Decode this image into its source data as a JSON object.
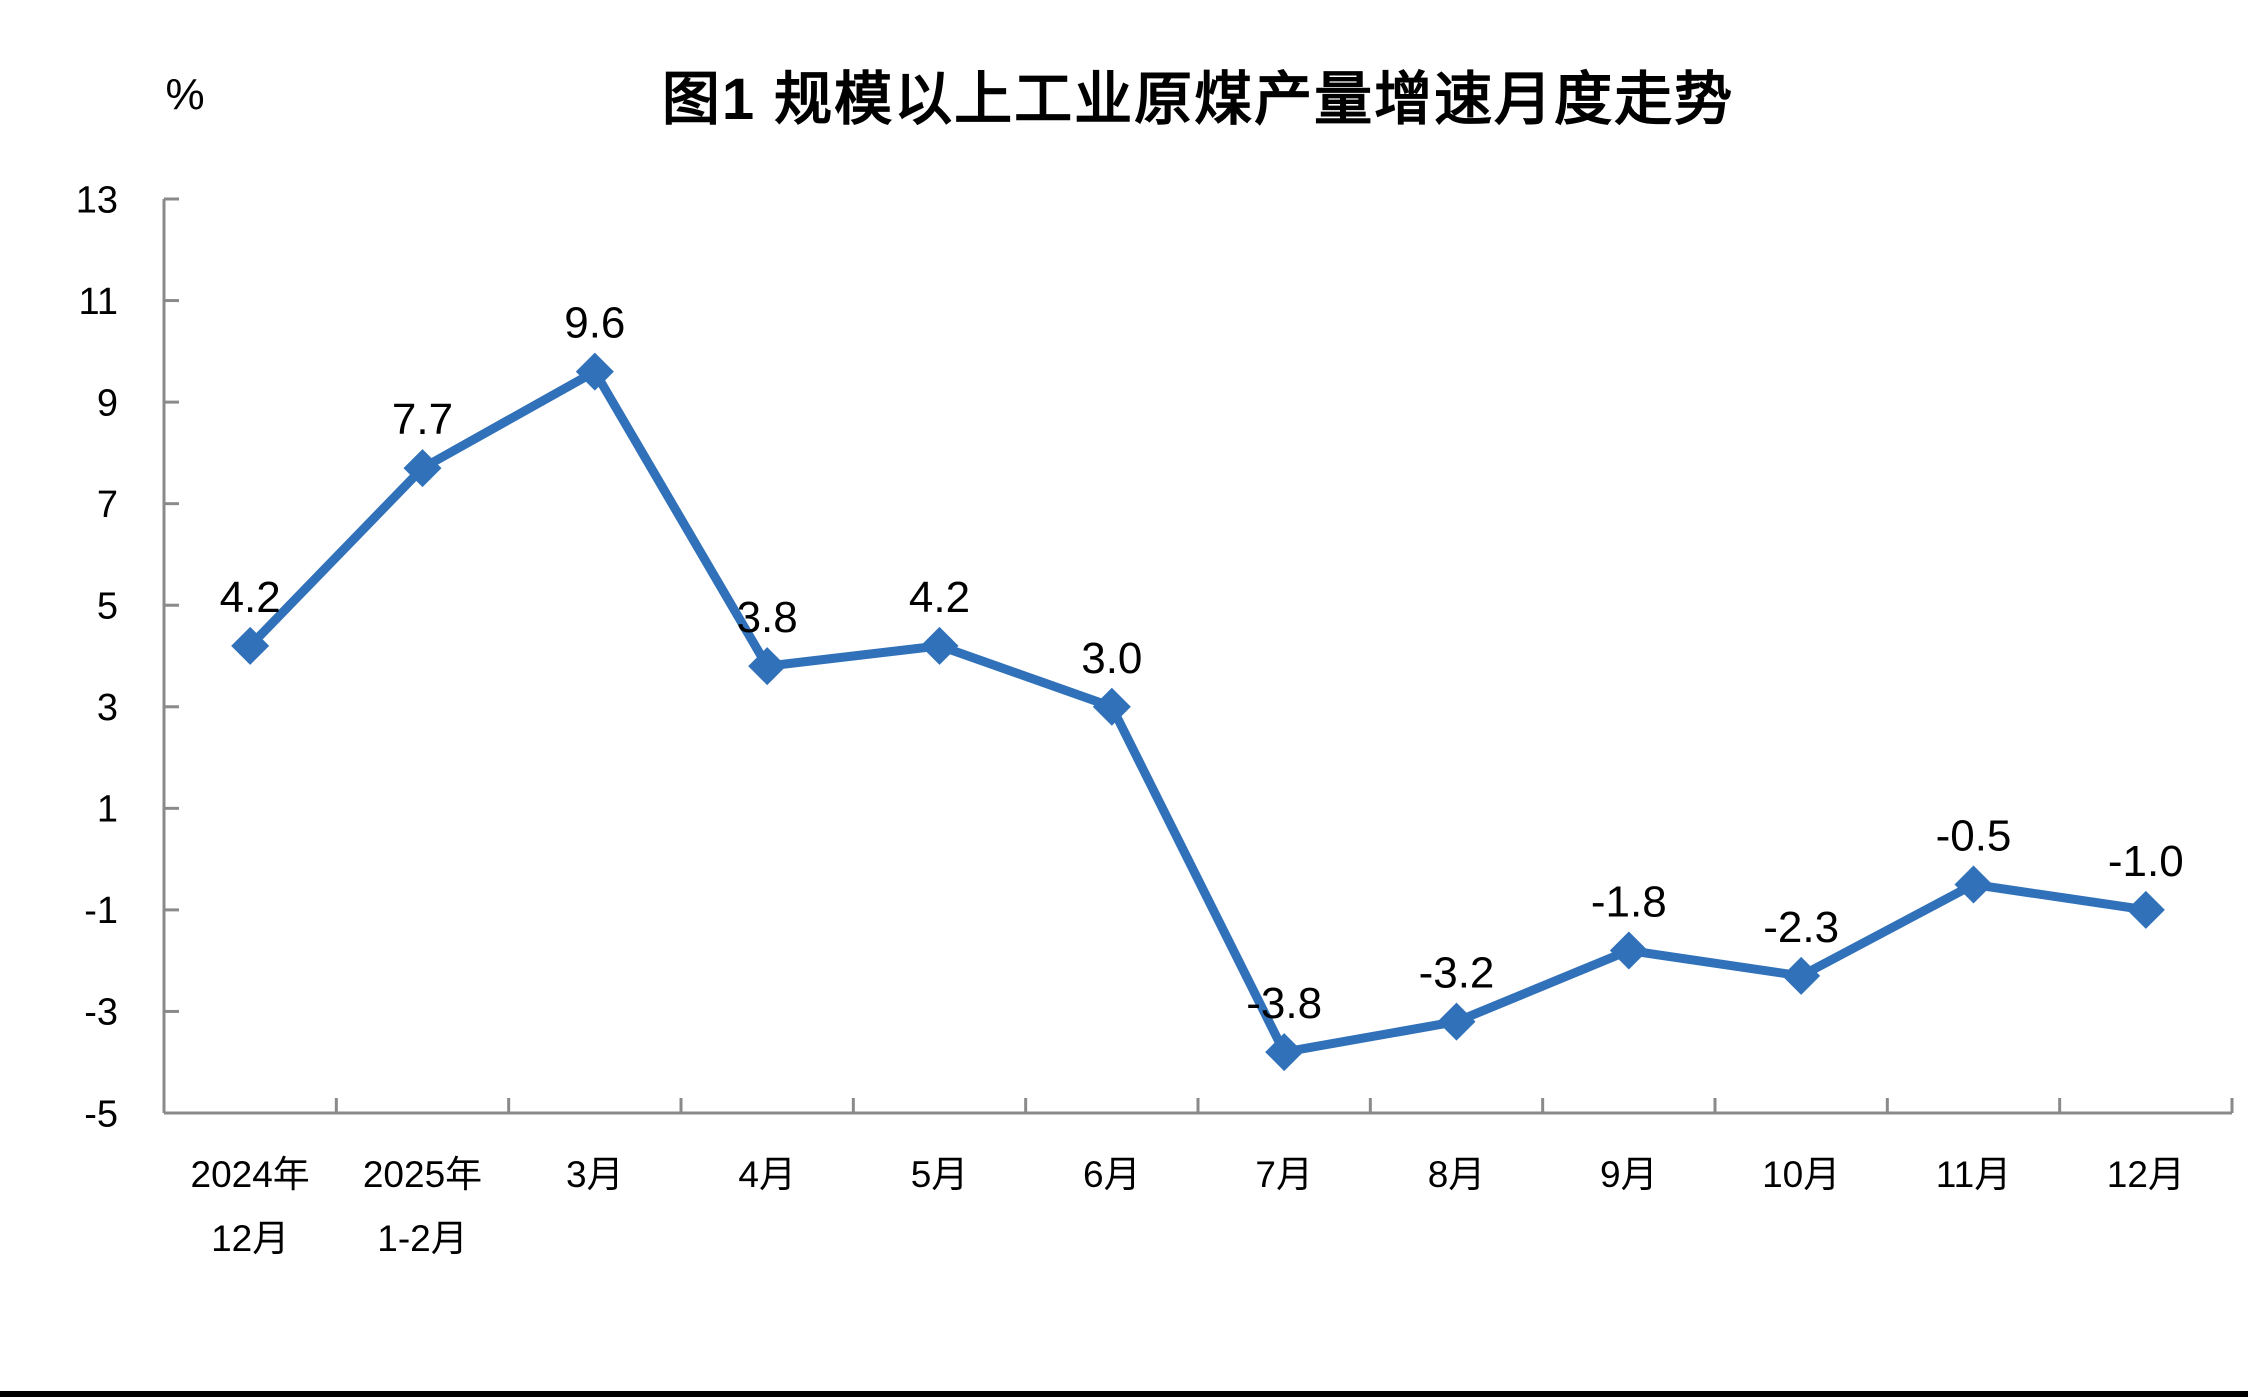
{
  "page": {
    "background": "#ffffff",
    "bottom_rule_color": "#000000"
  },
  "chart": {
    "title": "图1 规模以上工业原煤产量增速月度走势",
    "unit_label": "%"
  },
  "chart_data": {
    "type": "line",
    "title": "图1 规模以上工业原煤产量增速月度走势",
    "xlabel": "",
    "ylabel": "%",
    "categories": [
      "2024年\n12月",
      "2025年\n1-2月",
      "3月",
      "4月",
      "5月",
      "6月",
      "7月",
      "8月",
      "9月",
      "10月",
      "11月",
      "12月"
    ],
    "values": [
      4.2,
      7.7,
      9.6,
      3.8,
      4.2,
      3.0,
      -3.8,
      -3.2,
      -1.8,
      -2.3,
      -0.5,
      -1.0
    ],
    "point_labels": [
      "4.2",
      "7.7",
      "9.6",
      "3.8",
      "4.2",
      "3.0",
      "-3.8",
      "-3.2",
      "-1.8",
      "-2.3",
      "-0.5",
      "-1.0"
    ],
    "ylim": [
      -5,
      13
    ],
    "yticks": [
      13,
      11,
      9,
      7,
      5,
      3,
      1,
      -1,
      -3,
      -5
    ],
    "ytick_interval": 2,
    "grid": false,
    "legend_position": "none",
    "marker": "diamond",
    "colors": {
      "line": "#3071B9",
      "marker": "#3071B9",
      "axis": "#8A8A8A",
      "text": "#000000"
    }
  }
}
